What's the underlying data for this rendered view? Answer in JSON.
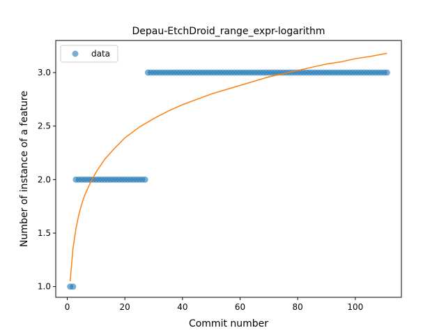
{
  "chart_data": {
    "type": "scatter",
    "title": "Depau-EtchDroid_range_expr-logarithm",
    "xlabel": "Commit number",
    "ylabel": "Number of instance of a feature",
    "xlim": [
      -4,
      116
    ],
    "ylim": [
      0.9,
      3.3
    ],
    "xticks": [
      0,
      20,
      40,
      60,
      80,
      100
    ],
    "yticks": [
      1.0,
      1.5,
      2.0,
      2.5,
      3.0
    ],
    "xtick_labels": [
      "0",
      "20",
      "40",
      "60",
      "80",
      "100"
    ],
    "ytick_labels": [
      "1.0",
      "1.5",
      "2.0",
      "2.5",
      "3.0"
    ],
    "legend": {
      "placement": "upper-left",
      "entries": [
        "data"
      ]
    },
    "grid": false,
    "series": [
      {
        "name": "data",
        "type": "scatter",
        "color": "#1f77b4",
        "points": [
          [
            1,
            1
          ],
          [
            2,
            1
          ],
          [
            3,
            2
          ],
          [
            4,
            2
          ],
          [
            5,
            2
          ],
          [
            6,
            2
          ],
          [
            7,
            2
          ],
          [
            8,
            2
          ],
          [
            9,
            2
          ],
          [
            10,
            2
          ],
          [
            11,
            2
          ],
          [
            12,
            2
          ],
          [
            13,
            2
          ],
          [
            14,
            2
          ],
          [
            15,
            2
          ],
          [
            16,
            2
          ],
          [
            17,
            2
          ],
          [
            18,
            2
          ],
          [
            19,
            2
          ],
          [
            20,
            2
          ],
          [
            21,
            2
          ],
          [
            22,
            2
          ],
          [
            23,
            2
          ],
          [
            24,
            2
          ],
          [
            25,
            2
          ],
          [
            26,
            2
          ],
          [
            27,
            2
          ],
          [
            28,
            3
          ],
          [
            29,
            3
          ],
          [
            30,
            3
          ],
          [
            31,
            3
          ],
          [
            32,
            3
          ],
          [
            33,
            3
          ],
          [
            34,
            3
          ],
          [
            35,
            3
          ],
          [
            36,
            3
          ],
          [
            37,
            3
          ],
          [
            38,
            3
          ],
          [
            39,
            3
          ],
          [
            40,
            3
          ],
          [
            41,
            3
          ],
          [
            42,
            3
          ],
          [
            43,
            3
          ],
          [
            44,
            3
          ],
          [
            45,
            3
          ],
          [
            46,
            3
          ],
          [
            47,
            3
          ],
          [
            48,
            3
          ],
          [
            49,
            3
          ],
          [
            50,
            3
          ],
          [
            51,
            3
          ],
          [
            52,
            3
          ],
          [
            53,
            3
          ],
          [
            54,
            3
          ],
          [
            55,
            3
          ],
          [
            56,
            3
          ],
          [
            57,
            3
          ],
          [
            58,
            3
          ],
          [
            59,
            3
          ],
          [
            60,
            3
          ],
          [
            61,
            3
          ],
          [
            62,
            3
          ],
          [
            63,
            3
          ],
          [
            64,
            3
          ],
          [
            65,
            3
          ],
          [
            66,
            3
          ],
          [
            67,
            3
          ],
          [
            68,
            3
          ],
          [
            69,
            3
          ],
          [
            70,
            3
          ],
          [
            71,
            3
          ],
          [
            72,
            3
          ],
          [
            73,
            3
          ],
          [
            74,
            3
          ],
          [
            75,
            3
          ],
          [
            76,
            3
          ],
          [
            77,
            3
          ],
          [
            78,
            3
          ],
          [
            79,
            3
          ],
          [
            80,
            3
          ],
          [
            81,
            3
          ],
          [
            82,
            3
          ],
          [
            83,
            3
          ],
          [
            84,
            3
          ],
          [
            85,
            3
          ],
          [
            86,
            3
          ],
          [
            87,
            3
          ],
          [
            88,
            3
          ],
          [
            89,
            3
          ],
          [
            90,
            3
          ],
          [
            91,
            3
          ],
          [
            92,
            3
          ],
          [
            93,
            3
          ],
          [
            94,
            3
          ],
          [
            95,
            3
          ],
          [
            96,
            3
          ],
          [
            97,
            3
          ],
          [
            98,
            3
          ],
          [
            99,
            3
          ],
          [
            100,
            3
          ],
          [
            101,
            3
          ],
          [
            102,
            3
          ],
          [
            103,
            3
          ],
          [
            104,
            3
          ],
          [
            105,
            3
          ],
          [
            106,
            3
          ],
          [
            107,
            3
          ],
          [
            108,
            3
          ],
          [
            109,
            3
          ],
          [
            110,
            3
          ],
          [
            111,
            3
          ]
        ]
      },
      {
        "name": "",
        "type": "line",
        "color": "#ff7f0e",
        "points": [
          [
            1,
            1.05
          ],
          [
            2,
            1.36
          ],
          [
            3,
            1.54
          ],
          [
            4,
            1.67
          ],
          [
            5,
            1.77
          ],
          [
            6,
            1.85
          ],
          [
            8,
            1.97
          ],
          [
            10,
            2.07
          ],
          [
            13,
            2.19
          ],
          [
            16,
            2.28
          ],
          [
            20,
            2.39
          ],
          [
            25,
            2.49
          ],
          [
            30,
            2.57
          ],
          [
            35,
            2.64
          ],
          [
            40,
            2.7
          ],
          [
            45,
            2.75
          ],
          [
            50,
            2.8
          ],
          [
            55,
            2.84
          ],
          [
            60,
            2.88
          ],
          [
            65,
            2.92
          ],
          [
            70,
            2.96
          ],
          [
            75,
            2.99
          ],
          [
            80,
            3.02
          ],
          [
            85,
            3.05
          ],
          [
            90,
            3.08
          ],
          [
            95,
            3.1
          ],
          [
            100,
            3.13
          ],
          [
            105,
            3.15
          ],
          [
            111,
            3.18
          ]
        ]
      }
    ]
  }
}
